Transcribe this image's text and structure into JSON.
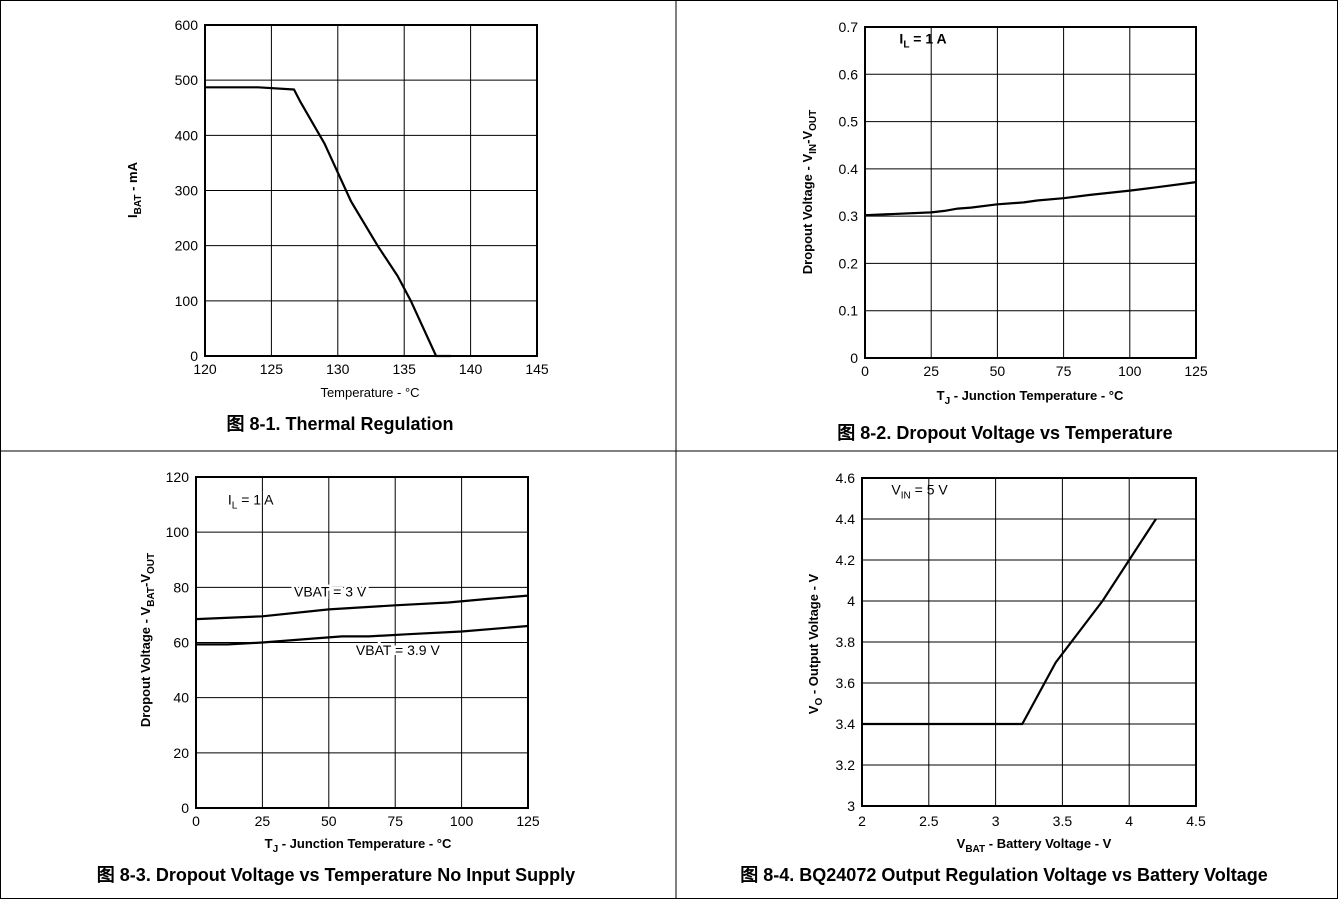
{
  "chart_data": [
    {
      "type": "line",
      "caption": "图 8-1. Thermal Regulation",
      "xlabel": "Temperature - °C",
      "ylabel": {
        "main": "I",
        "sub": "BAT",
        "rest": " - mA"
      },
      "xlim": [
        120,
        145
      ],
      "ylim": [
        0,
        600
      ],
      "xticks": [
        120,
        125,
        130,
        135,
        140,
        145
      ],
      "yticks": [
        0,
        100,
        200,
        300,
        400,
        500,
        600
      ],
      "grid": true,
      "series": [
        {
          "x": [
            120,
            124,
            126.7,
            127.2,
            129,
            131,
            133,
            134.5,
            135.5,
            137.4,
            138.5
          ],
          "y": [
            487,
            487,
            483,
            460,
            385,
            280,
            200,
            145,
            100,
            0,
            0
          ]
        }
      ],
      "annotations": []
    },
    {
      "type": "line",
      "caption": "图 8-2. Dropout Voltage vs Temperature",
      "xlabel": {
        "main": "T",
        "sub": "J",
        "rest": " - Junction Temperature - °C"
      },
      "ylabel": {
        "main": "Dropout Voltage - V",
        "sub1": "IN",
        "mid": "-V",
        "sub2": "OUT"
      },
      "xlim": [
        0,
        125
      ],
      "ylim": [
        0,
        0.7
      ],
      "xticks": [
        0,
        25,
        50,
        75,
        100,
        125
      ],
      "yticks": [
        0,
        0.1,
        0.2,
        0.3,
        0.4,
        0.5,
        0.6,
        0.7
      ],
      "grid": true,
      "series": [
        {
          "x": [
            0,
            25,
            30,
            35,
            40,
            50,
            60,
            65,
            75,
            85,
            100,
            110,
            125
          ],
          "y": [
            0.302,
            0.308,
            0.311,
            0.316,
            0.318,
            0.325,
            0.329,
            0.333,
            0.338,
            0.345,
            0.354,
            0.361,
            0.372
          ]
        }
      ],
      "annotations": [
        {
          "main": "I",
          "sub": "L",
          "rest": " = 1 A",
          "x": 13,
          "y": 0.665,
          "bold": true
        }
      ]
    },
    {
      "type": "line",
      "caption": "图 8-3. Dropout Voltage vs Temperature No Input Supply",
      "xlabel": {
        "main": "T",
        "sub": "J",
        "rest": " - Junction Temperature - °C"
      },
      "ylabel": {
        "main": "Dropout Voltage - V",
        "sub1": "BAT",
        "mid": "-V",
        "sub2": "OUT"
      },
      "xlim": [
        0,
        125
      ],
      "ylim": [
        0,
        120
      ],
      "xticks": [
        0,
        25,
        50,
        75,
        100,
        125
      ],
      "yticks": [
        0,
        20,
        40,
        60,
        80,
        100,
        120
      ],
      "grid": true,
      "series": [
        {
          "name": "VBAT = 3 V",
          "x": [
            0,
            25,
            50,
            75,
            95,
            110,
            125
          ],
          "y": [
            68.5,
            69.5,
            72,
            73.5,
            74.5,
            75.8,
            77
          ]
        },
        {
          "name": "VBAT = 3.9 V",
          "x": [
            0,
            12,
            25,
            45,
            55,
            65,
            80,
            100,
            125
          ],
          "y": [
            59.3,
            59.3,
            60,
            61.5,
            62.2,
            62.2,
            63,
            64,
            66
          ]
        }
      ],
      "annotations": [
        {
          "main": "I",
          "sub": "L",
          "rest": " = 1 A",
          "x": 12,
          "y": 110
        },
        {
          "main": "VBAT = 3 V",
          "x": 50.5,
          "y": 76.6
        },
        {
          "main": "VBAT = 3.9 V",
          "x": 76,
          "y": 55.5
        }
      ]
    },
    {
      "type": "line",
      "caption": "图 8-4. BQ24072 Output Regulation Voltage vs Battery Voltage",
      "xlabel": {
        "main": "V",
        "sub": "BAT",
        "rest": " - Battery Voltage - V"
      },
      "ylabel": {
        "main": "V",
        "sub": "O",
        "rest": " - Output Voltage - V"
      },
      "xlim": [
        2,
        4.5
      ],
      "ylim": [
        3,
        4.6
      ],
      "xticks": [
        2,
        2.5,
        3,
        3.5,
        4,
        4.5
      ],
      "ytick_labels": [
        "3",
        "3.2",
        "3.4",
        "3.6",
        "3.8",
        "4",
        "4.2",
        "4.4",
        "4.6"
      ],
      "yticks": [
        3,
        3.2,
        3.4,
        3.6,
        3.8,
        4,
        4.2,
        4.4,
        4.6
      ],
      "grid": true,
      "series": [
        {
          "x": [
            2,
            3.2,
            3.45,
            3.8,
            4.2
          ],
          "y": [
            3.4,
            3.4,
            3.7,
            4.0,
            4.4
          ]
        }
      ],
      "annotations": [
        {
          "main": "V",
          "sub": "IN",
          "rest": " = 5 V",
          "x": 2.22,
          "y": 4.52
        }
      ]
    }
  ]
}
